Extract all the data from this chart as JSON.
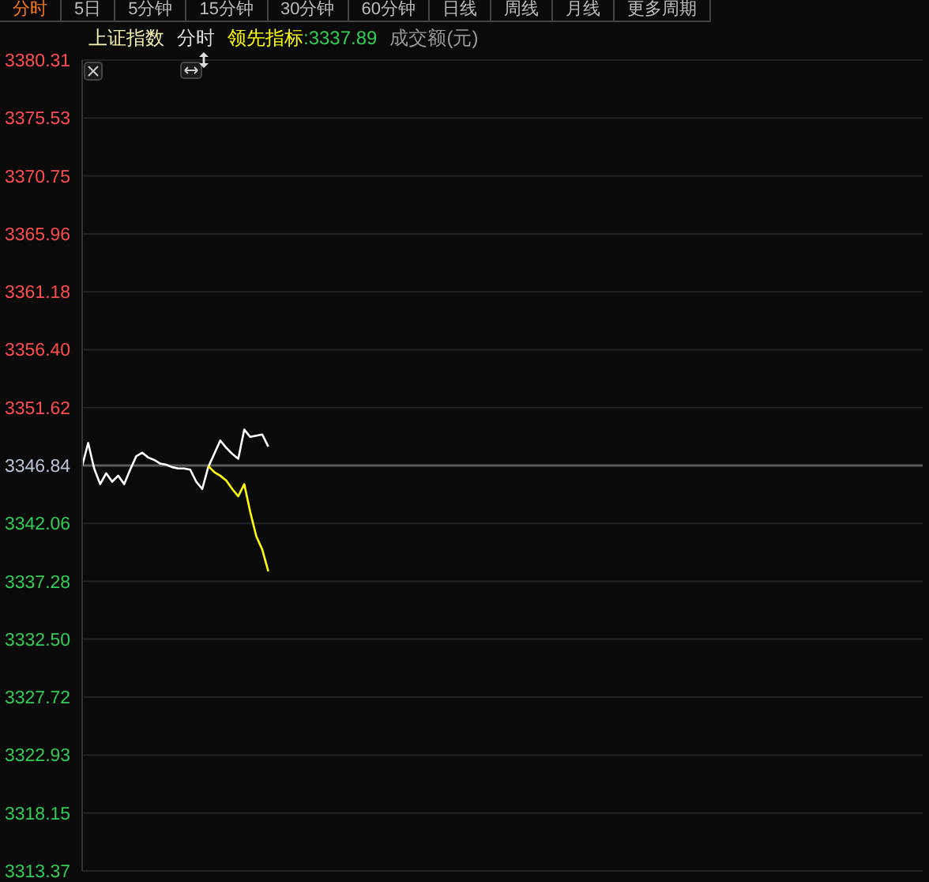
{
  "chart_data": {
    "type": "line",
    "title": "上证指数",
    "subtitle": "分时",
    "annotations": [
      ":3337.89",
      "成交额(元)",
      "分时",
      "5日",
      "5分钟",
      "15分钟",
      "30分钟",
      "60分钟",
      "日线",
      "周线",
      "月线",
      "更多周期"
    ],
    "categories": [
      null,
      null,
      null,
      null,
      null,
      null,
      null,
      null,
      null,
      null,
      null,
      null,
      null,
      null,
      null,
      null,
      null,
      null,
      null,
      null,
      null,
      null,
      null,
      null,
      null,
      null,
      null,
      null,
      null,
      null,
      null,
      null,
      null,
      null,
      null,
      null,
      null,
      null,
      null,
      null,
      null,
      null,
      null,
      null,
      null,
      null,
      null,
      null,
      null,
      null,
      null,
      null,
      null,
      null,
      null,
      null,
      null,
      null,
      null,
      null,
      null,
      null,
      null,
      null,
      null,
      null,
      null,
      null,
      null,
      null,
      null,
      null,
      null,
      null,
      null,
      null,
      null,
      null,
      null,
      null,
      null,
      null,
      null,
      null,
      null,
      null,
      null,
      null,
      null,
      null,
      null,
      null,
      null,
      null,
      null,
      null,
      null,
      null,
      null,
      null,
      null,
      null,
      null,
      null,
      null,
      null,
      null,
      null,
      null,
      null,
      null,
      null,
      null,
      null,
      null,
      null,
      null,
      null,
      null,
      null,
      null,
      null,
      null,
      null,
      null,
      null,
      null,
      null,
      null,
      null,
      null,
      null,
      null,
      null,
      null,
      null,
      null,
      null,
      null,
      null,
      null
    ],
    "ylim": [
      3313.37,
      3380.31
    ],
    "yticks": [
      3313.37,
      3318.15,
      3322.93,
      3327.72,
      {
        "value": 3332.5,
        "label": "3332.50"
      },
      3337.28,
      3342.06,
      3346.84,
      3351.62,
      {
        "value": 3356.4,
        "label": "3356.40"
      },
      3361.18,
      3365.96,
      3370.75,
      3375.53,
      3380.31
    ],
    "tick_labels": "y",
    "grid": "y",
    "legend": "top left",
    "marker": "none",
    "line_style": "solid",
    "ref_lines": [
      {
        "axis": "y",
        "value": 3346.84,
        "color": "#5a5a5a"
      }
    ],
    "series": [
      {
        "color": "#ffffff",
        "values": [
          3346.8,
          3348.7,
          3346.6,
          3345.3,
          3346.2,
          3345.5,
          3346.0,
          3345.3,
          3346.5,
          3347.6,
          3347.9,
          3347.5,
          3347.3,
          3347.0,
          3346.9,
          3346.7,
          3346.6,
          3346.6,
          3346.5,
          3345.5,
          3344.9,
          3346.7,
          3347.8,
          3348.9,
          3348.3,
          3347.8,
          3347.4,
          3349.8,
          3349.2,
          3349.3,
          3349.4,
          3348.4,
          null,
          null,
          null,
          null,
          null,
          null,
          null,
          null,
          null,
          null,
          null,
          null,
          null,
          null,
          null,
          null,
          null,
          null,
          null,
          null,
          null,
          null,
          null,
          null,
          null,
          null,
          null,
          null,
          null,
          null,
          null,
          null,
          null,
          null,
          null,
          null,
          null,
          null,
          null,
          null,
          null,
          null,
          null,
          null,
          null,
          null,
          null,
          null,
          null,
          null,
          null,
          null,
          null,
          null,
          null,
          null,
          null,
          null,
          null,
          null,
          null,
          null,
          null,
          null,
          null,
          null,
          null,
          null,
          null,
          null,
          null,
          null,
          null,
          null,
          null,
          null,
          null,
          null,
          null,
          null,
          null,
          null,
          null,
          null,
          null,
          null,
          null,
          null,
          null,
          null,
          null,
          null,
          null,
          null,
          null,
          null,
          null,
          null,
          null,
          null,
          null,
          null,
          null,
          null,
          null,
          null,
          null,
          null,
          null
        ]
      },
      {
        "name": "领先指标",
        "color": "#ffff00",
        "values": [
          null,
          null,
          null,
          null,
          null,
          null,
          null,
          null,
          null,
          null,
          null,
          null,
          null,
          null,
          null,
          null,
          null,
          null,
          null,
          null,
          null,
          3346.8,
          3346.3,
          3346.0,
          3345.6,
          3344.9,
          3344.3,
          3345.3,
          3343.0,
          3341.0,
          3339.9,
          3338.1,
          null,
          null,
          null,
          null,
          null,
          null,
          null,
          null,
          null,
          null,
          null,
          null,
          null,
          null,
          null,
          null,
          null,
          null,
          null,
          null,
          null,
          null,
          null,
          null,
          null,
          null,
          null,
          null,
          null,
          null,
          null,
          null,
          null,
          null,
          null,
          null,
          null,
          null,
          null,
          null,
          null,
          null,
          null,
          null,
          null,
          null,
          null,
          null,
          null,
          null,
          null,
          null,
          null,
          null,
          null,
          null,
          null,
          null,
          null,
          null,
          null,
          null,
          null,
          null,
          null,
          null,
          null,
          null,
          null,
          null,
          null,
          null,
          null,
          null,
          null,
          null,
          null,
          null,
          null,
          null,
          null,
          null,
          null,
          null,
          null,
          null,
          null,
          null,
          null,
          null,
          null,
          null,
          null,
          null,
          null,
          null,
          null,
          null,
          null,
          null,
          null,
          null,
          null,
          null,
          null,
          null,
          null,
          null,
          null
        ]
      }
    ]
  }
}
